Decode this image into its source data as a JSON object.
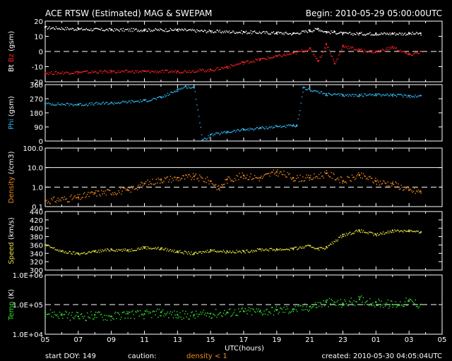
{
  "header": {
    "title": "ACE RTSW (Estimated) MAG & SWEPAM",
    "begin": "Begin: 2010-05-29 05:00:00UTC"
  },
  "footer": {
    "start_doy": "start DOY: 149",
    "caution": "caution:",
    "density_note": "density < 1",
    "created": "created: 2010-05-30 04:05:04UTC"
  },
  "x_axis": {
    "label": "UTC(hours)",
    "ticks": [
      "05",
      "07",
      "09",
      "11",
      "13",
      "15",
      "17",
      "19",
      "21",
      "23",
      "01",
      "03",
      "05"
    ]
  },
  "colors": {
    "white": "#ffffff",
    "red": "#ff2020",
    "cyan": "#30b8f0",
    "orange": "#f08a20",
    "yellow": "#e8e040",
    "green": "#30e030"
  },
  "chart_data": [
    {
      "type": "line",
      "ylabel": "Bt Bz (gsm)",
      "ylabel_parts": [
        "Bt",
        "Bz",
        "(gsm)"
      ],
      "ylim": [
        -20,
        20
      ],
      "yticks": [
        "20",
        "10",
        "0",
        "-10",
        "-20"
      ],
      "reference_line": 0,
      "series": [
        {
          "name": "Bt",
          "x": [
            0,
            2,
            4,
            6,
            8,
            10,
            12,
            14,
            15,
            16,
            16.5,
            17,
            17.5,
            18,
            19,
            20,
            21,
            22,
            22.7
          ],
          "values": [
            16,
            15,
            14.5,
            14.5,
            14.5,
            13.5,
            13,
            12.5,
            12,
            14,
            15,
            13,
            13,
            12,
            12,
            12,
            12,
            12,
            12
          ]
        },
        {
          "name": "Bz",
          "x": [
            0,
            2,
            4,
            6,
            8,
            10,
            11,
            12,
            13,
            14,
            15,
            16,
            16.5,
            17,
            17.5,
            18,
            19,
            20,
            21,
            22,
            22.7
          ],
          "values": [
            -14,
            -13.5,
            -13,
            -13,
            -13,
            -12,
            -10,
            -7,
            -5,
            -3,
            -1,
            2,
            -6,
            5,
            -8,
            4,
            1,
            0,
            3,
            -2,
            0
          ]
        }
      ]
    },
    {
      "type": "scatter",
      "ylabel": "Phi (gsm)",
      "ylabel_parts": [
        "Phi",
        "(gsm)"
      ],
      "ylim": [
        0,
        360
      ],
      "yticks": [
        "360",
        "270",
        "180",
        "90",
        "0"
      ],
      "series": [
        {
          "name": "Phi",
          "x": [
            0,
            2,
            4,
            6,
            7,
            8,
            8.5,
            9,
            9.5,
            10,
            11,
            12,
            13,
            14,
            15,
            15.2,
            15.6,
            16,
            17,
            18,
            19,
            20,
            21,
            22,
            22.7
          ],
          "values": [
            240,
            235,
            245,
            260,
            280,
            330,
            350,
            340,
            5,
            40,
            60,
            75,
            85,
            95,
            100,
            95,
            340,
            330,
            300,
            295,
            295,
            300,
            295,
            290,
            290
          ]
        }
      ]
    },
    {
      "type": "scatter",
      "ylabel": "Density (/cm3)",
      "ylabel_parts": [
        "Density",
        "(/cm3)"
      ],
      "scale": "log",
      "ylim": [
        0.1,
        100
      ],
      "yticks": [
        "100.0",
        "10.0",
        "1.0",
        "0.1"
      ],
      "reference_line": 1,
      "series": [
        {
          "name": "Density",
          "x": [
            0,
            2,
            3,
            5,
            6,
            7,
            8,
            9,
            10,
            10.5,
            11,
            12,
            13,
            14,
            15,
            16,
            17,
            18,
            19,
            20,
            21,
            22,
            22.7
          ],
          "values": [
            0.2,
            0.3,
            0.5,
            0.7,
            1.5,
            2.5,
            3,
            3.5,
            2,
            0.8,
            2.5,
            4,
            3,
            6,
            3,
            3,
            5,
            2,
            4,
            2,
            1.5,
            0.7,
            0.6
          ]
        }
      ]
    },
    {
      "type": "scatter",
      "ylabel": "Speed (km/s)",
      "ylabel_parts": [
        "Speed",
        "(km/s)"
      ],
      "ylim": [
        300,
        440
      ],
      "yticks": [
        "440",
        "420",
        "400",
        "380",
        "360",
        "340",
        "320",
        "300"
      ],
      "series": [
        {
          "name": "Speed",
          "x": [
            0,
            1,
            2,
            3,
            4,
            5,
            6,
            7,
            8,
            9,
            10,
            11,
            12,
            13,
            14,
            15,
            16,
            16.5,
            17,
            18,
            19,
            20,
            21,
            22,
            22.7
          ],
          "values": [
            360,
            345,
            340,
            345,
            350,
            348,
            355,
            352,
            345,
            340,
            348,
            345,
            345,
            350,
            350,
            352,
            358,
            352,
            355,
            385,
            395,
            385,
            395,
            395,
            390
          ]
        }
      ]
    },
    {
      "type": "scatter",
      "ylabel": "Temp (K)",
      "ylabel_parts": [
        "Temp",
        "(K)"
      ],
      "scale": "log",
      "ylim": [
        10000,
        1000000
      ],
      "yticks": [
        "1.0E+06",
        "1.0E+05",
        "1.0E+04"
      ],
      "reference_line": 100000,
      "series": [
        {
          "name": "Temp",
          "x": [
            0,
            1,
            2,
            3,
            4,
            5,
            6,
            7,
            8,
            9,
            10,
            11,
            12,
            13,
            14,
            15,
            16,
            17,
            18,
            19,
            20,
            21,
            22,
            22.7
          ],
          "values": [
            55000,
            45000,
            40000,
            45000,
            40000,
            50000,
            48000,
            55000,
            45000,
            45000,
            50000,
            55000,
            60000,
            60000,
            65000,
            70000,
            85000,
            120000,
            110000,
            150000,
            120000,
            100000,
            130000,
            100000
          ]
        }
      ]
    }
  ]
}
